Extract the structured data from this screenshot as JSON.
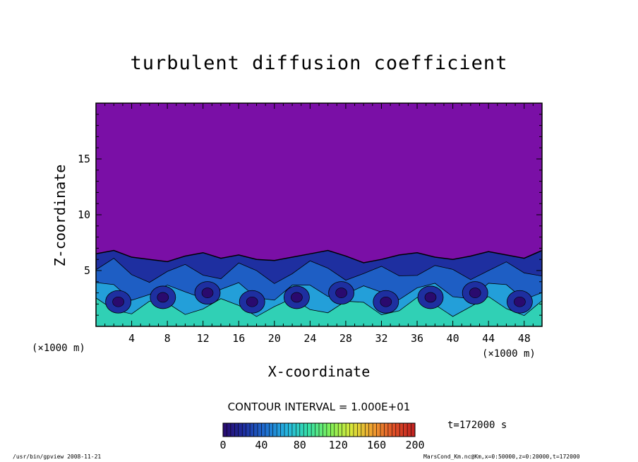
{
  "chart_data": {
    "type": "heatmap",
    "title": "turbulent diffusion coefficient",
    "xlabel": "X-coordinate",
    "ylabel": "Z-coordinate",
    "x_unit": "(×1000 m)",
    "y_unit": "(×1000 m)",
    "xlim": [
      0,
      50
    ],
    "ylim": [
      0,
      20
    ],
    "x_ticks": [
      4,
      8,
      12,
      16,
      20,
      24,
      28,
      32,
      36,
      40,
      44,
      48
    ],
    "y_ticks": [
      5,
      10,
      15
    ],
    "contour_interval": "CONTOUR INTERVAL = 1.000E+01",
    "colorbar": {
      "min": 0,
      "max": 200,
      "ticks": [
        0,
        40,
        80,
        120,
        160,
        200
      ],
      "colors": [
        "#2a0a6e",
        "#1e2fa0",
        "#1f6fd0",
        "#25b6e0",
        "#36e0a8",
        "#7ef05a",
        "#d8e83a",
        "#f0a030",
        "#e05028",
        "#c02020"
      ]
    },
    "background_value_color": "#7a0fa6",
    "boundary_layer_top_km": [
      6.5,
      6.8,
      6.2,
      6.0,
      5.8,
      6.3,
      6.6,
      6.1,
      6.4,
      6.0,
      5.9,
      6.2,
      6.5,
      6.8,
      6.3,
      5.7,
      6.0,
      6.4,
      6.6,
      6.2,
      6.0,
      6.3,
      6.7,
      6.4,
      6.1,
      6.8
    ],
    "time": "t=172000 s"
  },
  "footer": {
    "left": "/usr/bin/gpview   2008-11-21",
    "right": "MarsCond_Km.nc@Km,x=0:50000,z=0:20000,t=172000"
  }
}
